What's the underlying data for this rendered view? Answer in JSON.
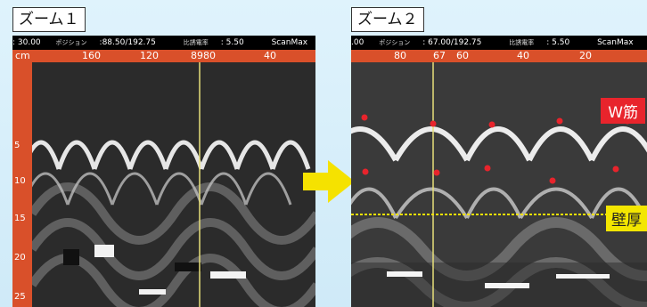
{
  "zoom1": {
    "label": "ズーム１",
    "status": {
      "a": ": 30.00",
      "pos_label": "ポジション",
      "pos": ":88.50/192.75",
      "rate_label": "比誘電率",
      "rate": ": 5.50",
      "brand": "ScanMax"
    },
    "ruler_top": [
      "cm",
      "160",
      "120",
      "8980",
      "40"
    ],
    "ruler_left": [
      "5",
      "10",
      "15",
      "20",
      "25"
    ]
  },
  "zoom2": {
    "label": "ズーム２",
    "status": {
      "a": ".00",
      "pos_label": "ポジション",
      "pos": ": 67.00/192.75",
      "rate_label": "比誘電率",
      "rate": ": 5.50",
      "brand": "ScanMax"
    },
    "ruler_top": [
      "80",
      "67",
      "60",
      "40",
      "20"
    ],
    "w_label": "W筋",
    "wall_label": "壁厚"
  },
  "colors": {
    "ruler": "#d9502a",
    "marker": "#e8242c",
    "arrow": "#f5e200"
  }
}
